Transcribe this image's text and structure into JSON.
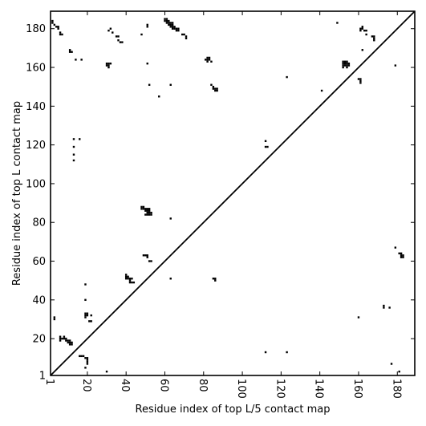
{
  "chart_data": {
    "type": "scatter",
    "title": "",
    "xlabel": "Residue index of top L/5 contact map",
    "ylabel": "Residue index of top L contact map",
    "xlim": [
      1,
      189
    ],
    "ylim": [
      1,
      189
    ],
    "grid": false,
    "diagonal": true,
    "xticks": [
      1,
      20,
      40,
      60,
      80,
      100,
      120,
      140,
      160,
      180
    ],
    "yticks": [
      1,
      20,
      40,
      60,
      80,
      100,
      120,
      140,
      160,
      180
    ],
    "series": [
      {
        "marker_color": "#000000",
        "points": [
          [
            2,
            184
          ],
          [
            2,
            183
          ],
          [
            3,
            182
          ],
          [
            4,
            181
          ],
          [
            5,
            181
          ],
          [
            5,
            180
          ],
          [
            6,
            178
          ],
          [
            6,
            177
          ],
          [
            7,
            177
          ],
          [
            11,
            169
          ],
          [
            11,
            168
          ],
          [
            12,
            168
          ],
          [
            14,
            164
          ],
          [
            17,
            164
          ],
          [
            30,
            162
          ],
          [
            31,
            162
          ],
          [
            30,
            161
          ],
          [
            31,
            161
          ],
          [
            32,
            162
          ],
          [
            31,
            160
          ],
          [
            31,
            179
          ],
          [
            32,
            180
          ],
          [
            33,
            178
          ],
          [
            35,
            176
          ],
          [
            36,
            176
          ],
          [
            36,
            174
          ],
          [
            37,
            173
          ],
          [
            38,
            173
          ],
          [
            48,
            177
          ],
          [
            51,
            182
          ],
          [
            51,
            181
          ],
          [
            51,
            162
          ],
          [
            52,
            151
          ],
          [
            57,
            145
          ],
          [
            60,
            185
          ],
          [
            61,
            185
          ],
          [
            60,
            184
          ],
          [
            61,
            184
          ],
          [
            62,
            184
          ],
          [
            61,
            183
          ],
          [
            62,
            183
          ],
          [
            63,
            183
          ],
          [
            64,
            183
          ],
          [
            62,
            182
          ],
          [
            63,
            182
          ],
          [
            64,
            182
          ],
          [
            63,
            181
          ],
          [
            64,
            181
          ],
          [
            65,
            181
          ],
          [
            64,
            180
          ],
          [
            65,
            180
          ],
          [
            66,
            180
          ],
          [
            67,
            180
          ],
          [
            66,
            179
          ],
          [
            67,
            179
          ],
          [
            69,
            177
          ],
          [
            70,
            177
          ],
          [
            71,
            176
          ],
          [
            71,
            175
          ],
          [
            63,
            151
          ],
          [
            81,
            164
          ],
          [
            82,
            164
          ],
          [
            83,
            164
          ],
          [
            82,
            165
          ],
          [
            83,
            165
          ],
          [
            82,
            163
          ],
          [
            84,
            163
          ],
          [
            84,
            151
          ],
          [
            85,
            150
          ],
          [
            85,
            149
          ],
          [
            86,
            149
          ],
          [
            87,
            149
          ],
          [
            86,
            148
          ],
          [
            87,
            148
          ],
          [
            13,
            123
          ],
          [
            13,
            119
          ],
          [
            13,
            115
          ],
          [
            13,
            112
          ],
          [
            16,
            123
          ],
          [
            48,
            88
          ],
          [
            49,
            88
          ],
          [
            48,
            87
          ],
          [
            49,
            87
          ],
          [
            50,
            87
          ],
          [
            51,
            87
          ],
          [
            52,
            87
          ],
          [
            50,
            86
          ],
          [
            51,
            86
          ],
          [
            52,
            86
          ],
          [
            51,
            85
          ],
          [
            52,
            85
          ],
          [
            53,
            85
          ],
          [
            50,
            84
          ],
          [
            51,
            84
          ],
          [
            52,
            84
          ],
          [
            53,
            84
          ],
          [
            63,
            82
          ],
          [
            49,
            63
          ],
          [
            50,
            63
          ],
          [
            51,
            63
          ],
          [
            51,
            62
          ],
          [
            52,
            60
          ],
          [
            53,
            60
          ],
          [
            63,
            51
          ],
          [
            85,
            51
          ],
          [
            86,
            51
          ],
          [
            86,
            50
          ],
          [
            40,
            53
          ],
          [
            40,
            52
          ],
          [
            41,
            52
          ],
          [
            40,
            51
          ],
          [
            41,
            51
          ],
          [
            42,
            51
          ],
          [
            43,
            51
          ],
          [
            42,
            50
          ],
          [
            42,
            49
          ],
          [
            43,
            49
          ],
          [
            44,
            49
          ],
          [
            3,
            31
          ],
          [
            3,
            30
          ],
          [
            19,
            48
          ],
          [
            19,
            40
          ],
          [
            19,
            33
          ],
          [
            20,
            33
          ],
          [
            19,
            32
          ],
          [
            20,
            32
          ],
          [
            22,
            32
          ],
          [
            19,
            31
          ],
          [
            21,
            29
          ],
          [
            22,
            29
          ],
          [
            6,
            21
          ],
          [
            6,
            20
          ],
          [
            6,
            19
          ],
          [
            7,
            20
          ],
          [
            8,
            20
          ],
          [
            8,
            21
          ],
          [
            9,
            20
          ],
          [
            9,
            19
          ],
          [
            10,
            19
          ],
          [
            10,
            18
          ],
          [
            11,
            19
          ],
          [
            11,
            18
          ],
          [
            11,
            17
          ],
          [
            12,
            18
          ],
          [
            12,
            17
          ],
          [
            16,
            11
          ],
          [
            17,
            11
          ],
          [
            18,
            11
          ],
          [
            19,
            10
          ],
          [
            20,
            10
          ],
          [
            20,
            9
          ],
          [
            20,
            8
          ],
          [
            20,
            7
          ],
          [
            19,
            5
          ],
          [
            30,
            3
          ],
          [
            112,
            122
          ],
          [
            112,
            119
          ],
          [
            113,
            119
          ],
          [
            112,
            13
          ],
          [
            123,
            155
          ],
          [
            123,
            13
          ],
          [
            141,
            148
          ],
          [
            149,
            183
          ],
          [
            152,
            163
          ],
          [
            153,
            163
          ],
          [
            154,
            163
          ],
          [
            152,
            162
          ],
          [
            153,
            162
          ],
          [
            154,
            162
          ],
          [
            155,
            162
          ],
          [
            152,
            161
          ],
          [
            153,
            161
          ],
          [
            154,
            161
          ],
          [
            155,
            161
          ],
          [
            152,
            160
          ],
          [
            154,
            160
          ],
          [
            160,
            154
          ],
          [
            161,
            154
          ],
          [
            161,
            153
          ],
          [
            161,
            152
          ],
          [
            160,
            31
          ],
          [
            161,
            180
          ],
          [
            162,
            180
          ],
          [
            161,
            179
          ],
          [
            162,
            181
          ],
          [
            163,
            179
          ],
          [
            164,
            179
          ],
          [
            164,
            177
          ],
          [
            162,
            169
          ],
          [
            167,
            176
          ],
          [
            168,
            176
          ],
          [
            168,
            175
          ],
          [
            168,
            174
          ],
          [
            179,
            161
          ],
          [
            179,
            67
          ],
          [
            181,
            64
          ],
          [
            182,
            64
          ],
          [
            182,
            63
          ],
          [
            183,
            63
          ],
          [
            182,
            62
          ],
          [
            183,
            62
          ],
          [
            173,
            37
          ],
          [
            173,
            36
          ],
          [
            176,
            36
          ],
          [
            177,
            7
          ],
          [
            181,
            3
          ]
        ]
      }
    ]
  }
}
